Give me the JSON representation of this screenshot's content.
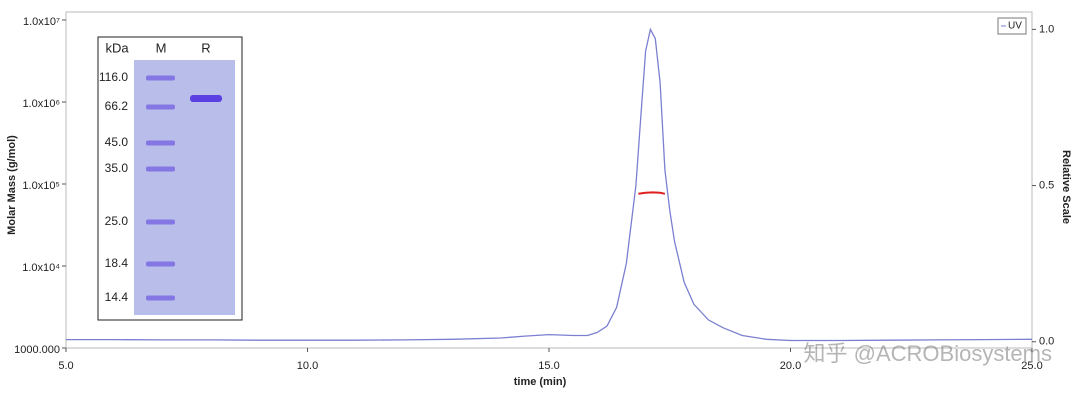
{
  "chart_data": {
    "type": "line",
    "xlabel": "time (min)",
    "ylabel": "Molar Mass (g/mol)",
    "y2label": "Relative Scale",
    "xlim": [
      5,
      25
    ],
    "xticks": [
      {
        "value": 5,
        "label": "5.0"
      },
      {
        "value": 10,
        "label": "10.0"
      },
      {
        "value": 15,
        "label": "15.0"
      },
      {
        "value": 20,
        "label": "20.0"
      },
      {
        "value": 25,
        "label": "25.0"
      }
    ],
    "ylim": [
      1000,
      10000000
    ],
    "ylog": true,
    "yticks": [
      {
        "value": 1000,
        "label": "1000.000"
      },
      {
        "value": 10000,
        "label": "1.0x10⁴"
      },
      {
        "value": 100000,
        "label": "1.0x10⁵"
      },
      {
        "value": 1000000,
        "label": "1.0x10⁶"
      },
      {
        "value": 10000000,
        "label": "1.0x10⁷"
      }
    ],
    "y2lim": [
      -0.02,
      1.03
    ],
    "y2ticks": [
      {
        "value": 0,
        "label": "0.0"
      },
      {
        "value": 0.5,
        "label": "0.5"
      },
      {
        "value": 1,
        "label": "1.0"
      }
    ],
    "legend": "upper right",
    "series": [
      {
        "name": "UV",
        "color": "#7b7fd0",
        "axis": "y2",
        "x": [
          5,
          6,
          7,
          8,
          9,
          10,
          11,
          12,
          13,
          14,
          14.5,
          15,
          15.5,
          15.8,
          16.0,
          16.2,
          16.4,
          16.6,
          16.8,
          16.9,
          17.0,
          17.1,
          17.2,
          17.3,
          17.4,
          17.5,
          17.6,
          17.8,
          18.0,
          18.3,
          18.6,
          19.0,
          19.5,
          20,
          21,
          22,
          23,
          24,
          25
        ],
        "values": [
          0.007,
          0.007,
          0.006,
          0.006,
          0.005,
          0.005,
          0.005,
          0.006,
          0.008,
          0.012,
          0.018,
          0.023,
          0.02,
          0.02,
          0.03,
          0.05,
          0.11,
          0.25,
          0.5,
          0.72,
          0.93,
          1.0,
          0.97,
          0.83,
          0.55,
          0.42,
          0.32,
          0.19,
          0.12,
          0.07,
          0.045,
          0.02,
          0.008,
          0.004,
          0.004,
          0.005,
          0.006,
          0.007,
          0.008
        ]
      },
      {
        "color": "#e02020",
        "x": [
          16.85,
          17.0,
          17.15,
          17.3,
          17.4
        ],
        "values": [
          76000,
          78000,
          79000,
          78000,
          76000
        ]
      }
    ],
    "gel": {
      "headers": [
        "kDa",
        "M",
        "R"
      ],
      "markers": [
        {
          "value": 116,
          "label": "116.0"
        },
        {
          "value": 66.2,
          "label": "66.2"
        },
        {
          "value": 45,
          "label": "45.0"
        },
        {
          "value": 35,
          "label": "35.0"
        },
        {
          "value": 25,
          "label": "25.0"
        },
        {
          "value": 18.4,
          "label": "18.4"
        },
        {
          "value": 14.4,
          "label": "14.4"
        }
      ]
    },
    "watermark": "知乎 @ACROBiosystems"
  }
}
